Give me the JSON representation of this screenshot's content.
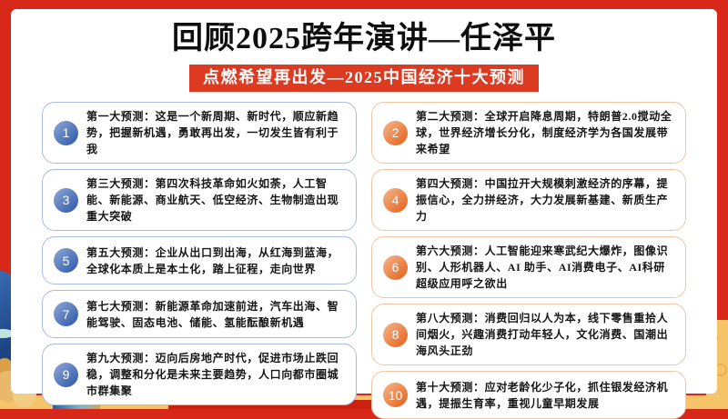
{
  "header": {
    "title": "回顾2025跨年演讲—任泽平",
    "subtitle": "点燃希望再出发—2025中国经济十大预测"
  },
  "predictions": [
    {
      "num": "1",
      "accent": "blue",
      "text": "第一大预测：这是一个新周期、新时代，顺应新趋势，把握新机遇，勇敢再出发，一切发生皆有利于我"
    },
    {
      "num": "2",
      "accent": "orange",
      "text": "第二大预测：全球开启降息周期，特朗普2.0搅动全球，世界经济增长分化，制度经济学为各国发展带来希望"
    },
    {
      "num": "3",
      "accent": "blue",
      "text": "第三大预测：第四次科技革命如火如荼，人工智能、新能源、商业航天、低空经济、生物制造出现重大突破"
    },
    {
      "num": "4",
      "accent": "orange",
      "text": "第四大预测：中国拉开大规模刺激经济的序幕，提振信心，全力拼经济，大力发展新基建、新质生产力"
    },
    {
      "num": "5",
      "accent": "blue",
      "text": "第五大预测：企业从出口到出海，从红海到蓝海，全球化本质上是本土化，踏上征程，走向世界"
    },
    {
      "num": "6",
      "accent": "orange",
      "text": "第六大预测：人工智能迎来寒武纪大爆炸，图像识别、人形机器人、AI 助手、AI消费电子、AI科研超级应用呼之欲出"
    },
    {
      "num": "7",
      "accent": "blue",
      "text": "第七大预测：新能源革命加速前进，汽车出海、智能驾驶、固态电池、储能、氢能酝酿新机遇"
    },
    {
      "num": "8",
      "accent": "orange",
      "text": "第八大预测：消费回归以人为本，线下零售重拾人间烟火，兴趣消费打动年轻人，文化消费、国潮出海风头正劲"
    },
    {
      "num": "9",
      "accent": "blue",
      "text": "第九大预测：迈向后房地产时代，促进市场止跌回稳，调整和分化是未来主要趋势，人口向都市圈城市群集聚"
    },
    {
      "num": "10",
      "accent": "orange",
      "text": "第十大预测：应对老龄化少子化，抓住银发经济机遇，提振生育率，重视儿童早期发展"
    }
  ],
  "colors": {
    "background_red": "#d7281a",
    "subtitle_red": "#dd3a22",
    "blue_accent": "#3f66b0",
    "blue_border": "#a9bddf",
    "orange_accent": "#e7702f",
    "orange_border": "#f2c4a2",
    "gold_band": "#f6c468",
    "bottom_red_bar": "#cc2110"
  }
}
